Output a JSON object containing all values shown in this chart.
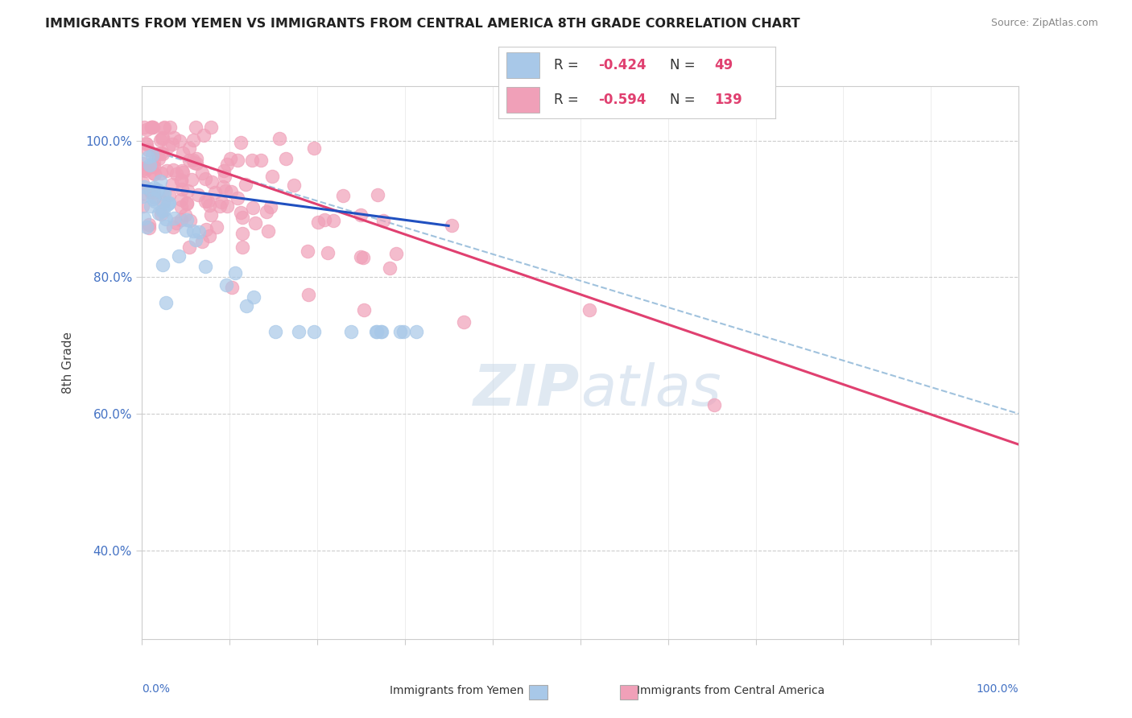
{
  "title": "IMMIGRANTS FROM YEMEN VS IMMIGRANTS FROM CENTRAL AMERICA 8TH GRADE CORRELATION CHART",
  "source": "Source: ZipAtlas.com",
  "ylabel": "8th Grade",
  "ytick_vals": [
    0.4,
    0.6,
    0.8,
    1.0
  ],
  "ytick_labels": [
    "40.0%",
    "60.0%",
    "80.0%",
    "100.0%"
  ],
  "legend_yemen_R": -0.424,
  "legend_yemen_N": 49,
  "legend_central_R": -0.594,
  "legend_central_N": 139,
  "yemen_color": "#a8c8e8",
  "central_color": "#f0a0b8",
  "yemen_line_color": "#2050c0",
  "central_line_color": "#e04070",
  "dash_line_color": "#90b8d8",
  "background_color": "#ffffff",
  "xlim": [
    0.0,
    1.0
  ],
  "ylim": [
    0.27,
    1.08
  ],
  "grid_color": "#cccccc",
  "title_color": "#222222",
  "source_color": "#888888",
  "tick_label_color": "#4472c4",
  "ylabel_color": "#444444",
  "watermark_color": "#c8d8e8",
  "legend_text_color": "#222222",
  "legend_val_color": "#e04070"
}
